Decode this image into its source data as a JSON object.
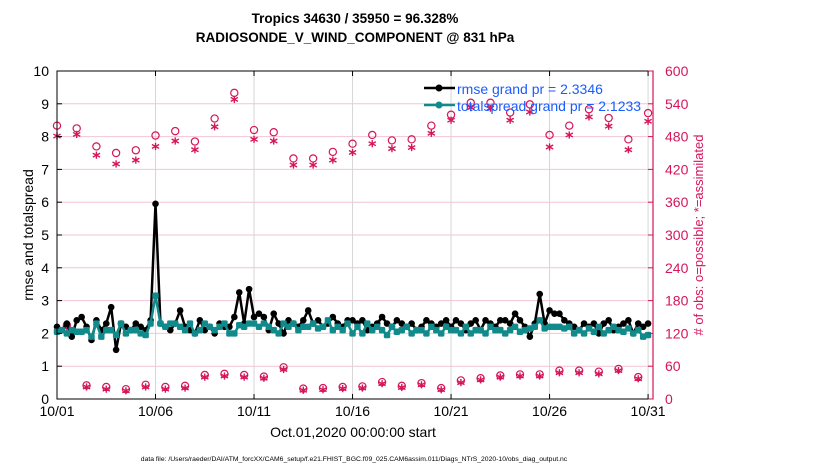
{
  "chart_data": {
    "type": "line",
    "title": [
      "Tropics 34630 / 35950 = 96.328%",
      "RADIOSONDE_V_WIND_COMPONENT @ 831 hPa"
    ],
    "xlabel": "Oct.01,2020 00:00:00 start",
    "ylabel": "rmse and totalspread",
    "ylabel_right": "# of obs: o=possible; *=assimilated",
    "footer": "data file: /Users/raeder/DAI/ATM_forcXX/CAM6_setup/f.e21.FHIST_BGC.f09_025.CAM6assim.011/Diags_NTrS_2020-10/obs_diag_output.nc",
    "xlim": [
      1,
      31.25
    ],
    "ylim": [
      0,
      10
    ],
    "ylim_right": [
      0,
      600
    ],
    "xticks": [
      1,
      6,
      11,
      16,
      21,
      26,
      31
    ],
    "xtick_labels": [
      "10/01",
      "10/06",
      "10/11",
      "10/16",
      "10/21",
      "10/26",
      "10/31"
    ],
    "yticks": [
      0,
      1,
      2,
      3,
      4,
      5,
      6,
      7,
      8,
      9,
      10
    ],
    "yticks_right": [
      0,
      60,
      120,
      180,
      240,
      300,
      360,
      420,
      480,
      540,
      600
    ],
    "grid": true,
    "legend": {
      "placement": "top-right",
      "entries": [
        {
          "label": "rmse grand pr = 2.3346",
          "color": "#000000"
        },
        {
          "label": "totalspread grand pr = 2.1233",
          "color": "#0a8080"
        }
      ]
    },
    "colors": {
      "rmse": "#000000",
      "spread": "#108a8a",
      "obs": "#d6155a",
      "legend_text": "#1a5cff",
      "grid": "#f2c4d4"
    },
    "x_step_days": 0.25,
    "series": [
      {
        "name": "rmse",
        "values": [
          2.2,
          2.1,
          2.3,
          1.9,
          2.4,
          2.5,
          2.2,
          1.8,
          2.4,
          2.1,
          2.3,
          2.8,
          1.5,
          2.3,
          2.2,
          2.1,
          2.3,
          2.2,
          2.1,
          2.4,
          5.95,
          2.3,
          2.2,
          2.1,
          2.3,
          2.7,
          2.2,
          2.1,
          2.0,
          2.4,
          2.1,
          2.2,
          2.0,
          2.3,
          2.2,
          2.2,
          2.5,
          3.25,
          2.3,
          3.35,
          2.5,
          2.6,
          2.5,
          2.1,
          2.6,
          2.3,
          2.0,
          2.4,
          2.3,
          2.2,
          2.4,
          2.7,
          2.3,
          2.4,
          2.2,
          2.3,
          2.5,
          2.3,
          2.2,
          2.4,
          2.4,
          2.3,
          2.4,
          2.1,
          2.2,
          2.3,
          2.5,
          2.3,
          2.2,
          2.4,
          2.3,
          2.2,
          2.3,
          2.1,
          2.2,
          2.4,
          2.3,
          2.2,
          2.3,
          2.4,
          2.2,
          2.4,
          2.3,
          2.1,
          2.3,
          2.4,
          2.1,
          2.4,
          2.3,
          2.2,
          2.4,
          2.4,
          2.3,
          2.6,
          2.4,
          2.2,
          1.9,
          2.3,
          3.2,
          2.3,
          2.7,
          2.6,
          2.6,
          2.4,
          2.3,
          2.2,
          2.1,
          2.3,
          2.2,
          2.3,
          2.0,
          2.3,
          2.4,
          2.1,
          2.2,
          2.3,
          2.4,
          2.0,
          2.3,
          2.2,
          2.3
        ]
      },
      {
        "name": "totalspread",
        "values": [
          2.05,
          2.1,
          2.0,
          2.1,
          2.05,
          2.05,
          2.1,
          1.9,
          2.3,
          1.9,
          2.1,
          2.1,
          1.95,
          2.3,
          2.0,
          2.1,
          2.1,
          2.0,
          1.95,
          2.3,
          3.15,
          2.3,
          2.2,
          2.3,
          2.3,
          2.2,
          2.1,
          2.3,
          2.0,
          2.1,
          2.3,
          2.2,
          2.1,
          2.2,
          2.3,
          2.0,
          2.0,
          2.25,
          2.2,
          2.3,
          2.3,
          2.2,
          2.3,
          2.2,
          2.1,
          2.0,
          2.3,
          2.2,
          2.3,
          2.1,
          2.2,
          2.2,
          2.3,
          2.15,
          2.2,
          2.4,
          2.1,
          2.2,
          2.1,
          2.3,
          2.0,
          2.2,
          2.0,
          2.3,
          2.1,
          2.2,
          2.1,
          1.95,
          2.2,
          2.05,
          2.1,
          2.2,
          2.0,
          2.1,
          2.1,
          2.0,
          2.2,
          2.1,
          2.0,
          2.2,
          2.1,
          2.1,
          2.0,
          2.2,
          2.0,
          2.1,
          2.1,
          2.0,
          2.2,
          2.1,
          2.1,
          2.0,
          2.1,
          2.2,
          2.05,
          2.1,
          2.15,
          2.2,
          2.4,
          2.15,
          2.2,
          2.2,
          2.2,
          2.15,
          2.2,
          2.0,
          2.1,
          2.0,
          2.15,
          2.05,
          2.2,
          2.0,
          2.1,
          2.2,
          2.1,
          2.05,
          2.15,
          2.0,
          2.1,
          1.9,
          1.95
        ]
      },
      {
        "name": "obs_possible",
        "axis": "right",
        "values": [
          500,
          135,
          495,
          25,
          462,
          22,
          450,
          18,
          455,
          26,
          482,
          22,
          490,
          24,
          471,
          44,
          513,
          46,
          560,
          44,
          492,
          41,
          488,
          58,
          440,
          19,
          440,
          20,
          452,
          22,
          467,
          23,
          483,
          31,
          473,
          24,
          475,
          29,
          500,
          20,
          520,
          34,
          542,
          38,
          542,
          43,
          524,
          45,
          539,
          45,
          483,
          52,
          500,
          52,
          530,
          50,
          514,
          55,
          475,
          40,
          523,
          47,
          522,
          60,
          492,
          60,
          528,
          47,
          530,
          120,
          510,
          64,
          520,
          70,
          480,
          50,
          466,
          56,
          490,
          52,
          470,
          68,
          507,
          56,
          525,
          54,
          510,
          52,
          516,
          46,
          540,
          55,
          510,
          60,
          480,
          55,
          475,
          48,
          520,
          52,
          540,
          56
        ]
      },
      {
        "name": "obs_assimilated",
        "axis": "right",
        "values": [
          481,
          131,
          484,
          22,
          446,
          18,
          430,
          15,
          437,
          22,
          462,
          18,
          472,
          20,
          456,
          40,
          498,
          42,
          548,
          40,
          475,
          38,
          472,
          54,
          428,
          16,
          428,
          17,
          437,
          19,
          451,
          20,
          467,
          28,
          458,
          21,
          460,
          26,
          486,
          17,
          510,
          30,
          533,
          35,
          532,
          40,
          510,
          42,
          525,
          42,
          461,
          48,
          483,
          48,
          516,
          46,
          499,
          52,
          456,
          37,
          508,
          44,
          508,
          56,
          476,
          56,
          513,
          44,
          518,
          110,
          496,
          60,
          506,
          66,
          465,
          46,
          452,
          52,
          474,
          48,
          454,
          64,
          493,
          52,
          511,
          50,
          496,
          48,
          500,
          42,
          526,
          52,
          495,
          56,
          468,
          52,
          456,
          44,
          503,
          48,
          527,
          52
        ]
      }
    ]
  }
}
